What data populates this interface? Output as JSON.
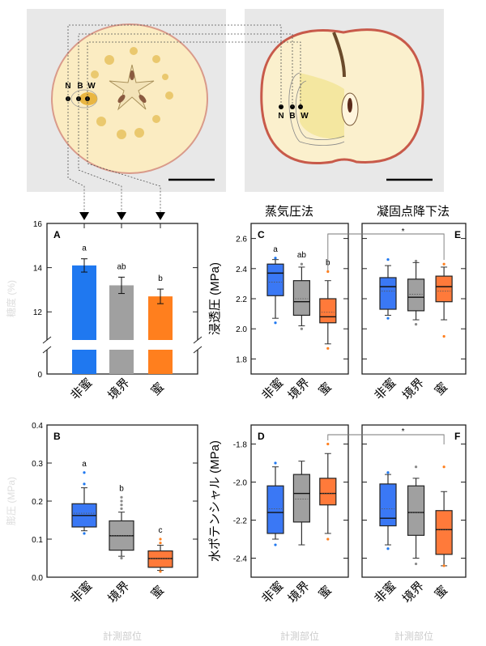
{
  "photos": {
    "cross_section": {
      "point_labels": [
        "N",
        "B",
        "W"
      ]
    },
    "longitudinal_section": {
      "point_labels": [
        "N",
        "B",
        "W"
      ]
    }
  },
  "column_titles": {
    "vapor_pressure": "蒸気圧法",
    "freezing_point": "凝固点降下法"
  },
  "x_categories": [
    "非蜜",
    "境界",
    "蜜"
  ],
  "x_axis_title": "計測部位",
  "colors": {
    "non_watercore": "#1f78f0",
    "boundary": "#a0a0a0",
    "watercore": "#ff7f1e",
    "box_blue": "#3a78f5",
    "box_gray": "#a0a0a0",
    "box_orange": "#ff7a3a"
  },
  "chart_data": [
    {
      "panel": "A",
      "type": "bar",
      "title": "",
      "xlabel": "",
      "ylabel": "糖度 (%)",
      "categories": [
        "非蜜",
        "境界",
        "蜜"
      ],
      "values": [
        14.1,
        13.2,
        12.7
      ],
      "errors": [
        0.3,
        0.37,
        0.33
      ],
      "letters": [
        "a",
        "ab",
        "b"
      ],
      "ylim": [
        0,
        16
      ],
      "axis_break": [
        0.9,
        10.8
      ],
      "yticks": [
        0,
        12,
        14,
        16
      ],
      "ytick_labels": [
        "0",
        "12",
        "14",
        "16"
      ],
      "grid": false,
      "legend": "none"
    },
    {
      "panel": "B",
      "type": "box",
      "xlabel": "計測部位",
      "ylabel": "膨圧 (MPa)",
      "categories": [
        "非蜜",
        "境界",
        "蜜"
      ],
      "ylim": [
        0,
        0.4
      ],
      "yticks": [
        0,
        0.1,
        0.2,
        0.3,
        0.4
      ],
      "ytick_labels": [
        "0.0",
        "0.1",
        "0.2",
        "0.3",
        "0.4"
      ],
      "series": [
        {
          "name": "非蜜",
          "min": 0.122,
          "q1": 0.132,
          "median": 0.162,
          "mean": 0.168,
          "q3": 0.193,
          "max": 0.235,
          "outliers": [
            0.115,
            0.245,
            0.275
          ]
        },
        {
          "name": "境界",
          "min": 0.055,
          "q1": 0.071,
          "median": 0.109,
          "mean": 0.109,
          "q3": 0.148,
          "max": 0.171,
          "outliers": [
            0.05,
            0.18,
            0.19,
            0.2,
            0.21
          ]
        },
        {
          "name": "蜜",
          "min": 0.018,
          "q1": 0.026,
          "median": 0.049,
          "mean": 0.049,
          "q3": 0.069,
          "max": 0.084,
          "outliers": [
            0.015,
            0.09,
            0.1
          ]
        }
      ],
      "letters": [
        "a",
        "b",
        "c"
      ]
    },
    {
      "panel": "C",
      "type": "box",
      "method": "蒸気圧法",
      "xlabel": "",
      "ylabel": "浸透圧 (MPa)",
      "categories": [
        "非蜜",
        "境界",
        "蜜"
      ],
      "ylim": [
        1.7,
        2.7
      ],
      "yticks": [
        1.8,
        2.0,
        2.2,
        2.4,
        2.6
      ],
      "ytick_labels": [
        "1.8",
        "2.0",
        "2.2",
        "2.4",
        "2.6"
      ],
      "series": [
        {
          "name": "非蜜",
          "min": 2.07,
          "q1": 2.22,
          "median": 2.37,
          "mean": 2.31,
          "q3": 2.43,
          "max": 2.46,
          "outliers": [
            2.04,
            2.47
          ]
        },
        {
          "name": "境界",
          "min": 2.02,
          "q1": 2.09,
          "median": 2.18,
          "mean": 2.2,
          "q3": 2.32,
          "max": 2.41,
          "outliers": [
            2.0,
            2.43
          ]
        },
        {
          "name": "蜜",
          "min": 1.9,
          "q1": 2.04,
          "median": 2.08,
          "mean": 2.11,
          "q3": 2.2,
          "max": 2.32,
          "outliers": [
            1.87,
            2.38
          ]
        }
      ],
      "letters": [
        "a",
        "ab",
        "b"
      ]
    },
    {
      "panel": "D",
      "type": "box",
      "method": "蒸気圧法",
      "xlabel": "計測部位",
      "ylabel": "水ポテンシャル (MPa)",
      "categories": [
        "非蜜",
        "境界",
        "蜜"
      ],
      "ylim": [
        -2.5,
        -1.7
      ],
      "yticks": [
        -2.4,
        -2.2,
        -2.0,
        -1.8
      ],
      "ytick_labels": [
        "-2.4",
        "-2.2",
        "-2.0",
        "-1.8"
      ],
      "series": [
        {
          "name": "非蜜",
          "min": -2.3,
          "q1": -2.27,
          "median": -2.16,
          "mean": -2.14,
          "q3": -2.02,
          "max": -1.92,
          "outliers": [
            -2.33,
            -1.9
          ]
        },
        {
          "name": "境界",
          "min": -2.33,
          "q1": -2.21,
          "median": -2.06,
          "mean": -2.09,
          "q3": -1.96,
          "max": -1.89,
          "outliers": []
        },
        {
          "name": "蜜",
          "min": -2.27,
          "q1": -2.12,
          "median": -2.06,
          "mean": -2.06,
          "q3": -1.98,
          "max": -1.85,
          "outliers": [
            -2.3,
            -1.8
          ]
        }
      ],
      "letters": []
    },
    {
      "panel": "E",
      "type": "box",
      "method": "凝固点降下法",
      "xlabel": "",
      "ylabel": "",
      "categories": [
        "非蜜",
        "境界",
        "蜜"
      ],
      "ylim": [
        1.7,
        2.7
      ],
      "yticks": [
        1.8,
        2.0,
        2.2,
        2.4,
        2.6
      ],
      "series": [
        {
          "name": "非蜜",
          "min": 2.09,
          "q1": 2.13,
          "median": 2.28,
          "mean": 2.25,
          "q3": 2.34,
          "max": 2.42,
          "outliers": [
            2.07,
            2.46
          ]
        },
        {
          "name": "境界",
          "min": 2.06,
          "q1": 2.12,
          "median": 2.21,
          "mean": 2.23,
          "q3": 2.33,
          "max": 2.44,
          "outliers": [
            2.03,
            2.45
          ]
        },
        {
          "name": "蜜",
          "min": 2.06,
          "q1": 2.18,
          "median": 2.28,
          "mean": 2.25,
          "q3": 2.35,
          "max": 2.41,
          "outliers": [
            1.95,
            2.43
          ]
        }
      ],
      "letters": []
    },
    {
      "panel": "F",
      "type": "box",
      "method": "凝固点降下法",
      "xlabel": "計測部位",
      "ylabel": "",
      "categories": [
        "非蜜",
        "境界",
        "蜜"
      ],
      "ylim": [
        -2.5,
        -1.7
      ],
      "yticks": [
        -2.4,
        -2.2,
        -2.0,
        -1.8
      ],
      "series": [
        {
          "name": "非蜜",
          "min": -2.33,
          "q1": -2.23,
          "median": -2.19,
          "mean": -2.14,
          "q3": -2.01,
          "max": -1.96,
          "outliers": [
            -2.35,
            -1.95
          ]
        },
        {
          "name": "境界",
          "min": -2.4,
          "q1": -2.28,
          "median": -2.16,
          "mean": -2.16,
          "q3": -2.02,
          "max": -1.98,
          "outliers": [
            -2.43,
            -1.92
          ]
        },
        {
          "name": "蜜",
          "min": -2.44,
          "q1": -2.38,
          "median": -2.25,
          "mean": -2.25,
          "q3": -2.15,
          "max": -2.05,
          "outliers": [
            -2.44,
            -1.92
          ]
        }
      ],
      "letters": []
    }
  ],
  "significance": [
    {
      "between": [
        "C.蜜",
        "E.蜜"
      ],
      "label": "*"
    },
    {
      "between": [
        "D.蜜",
        "F.蜜"
      ],
      "label": "*"
    }
  ]
}
